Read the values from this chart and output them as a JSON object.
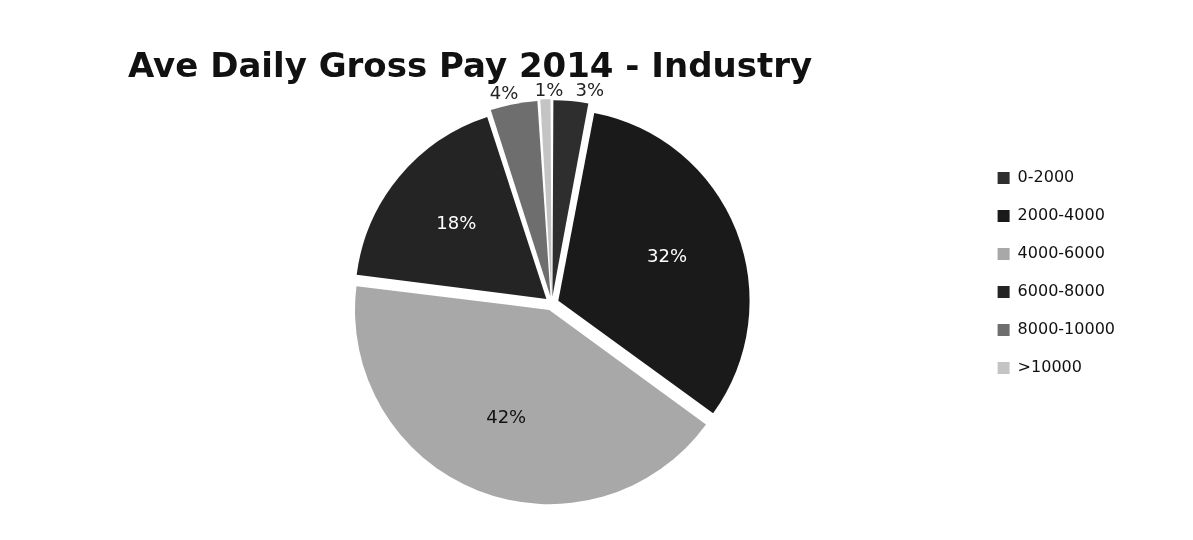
{
  "chart_data": {
    "type": "pie",
    "title": "Ave Daily Gross Pay 2014 - Industry",
    "categories": [
      "0-2000",
      "2000-4000",
      "4000-6000",
      "6000-8000",
      "8000-10000",
      ">10000"
    ],
    "values": [
      3,
      32,
      42,
      18,
      4,
      1
    ],
    "colors": [
      "#2e2e2e",
      "#1a1a1a",
      "#a8a8a8",
      "#242424",
      "#6e6e6e",
      "#c4c4c4"
    ],
    "value_labels": [
      "3%",
      "32%",
      "42%",
      "18%",
      "4%",
      "1%"
    ],
    "legend": "right"
  }
}
